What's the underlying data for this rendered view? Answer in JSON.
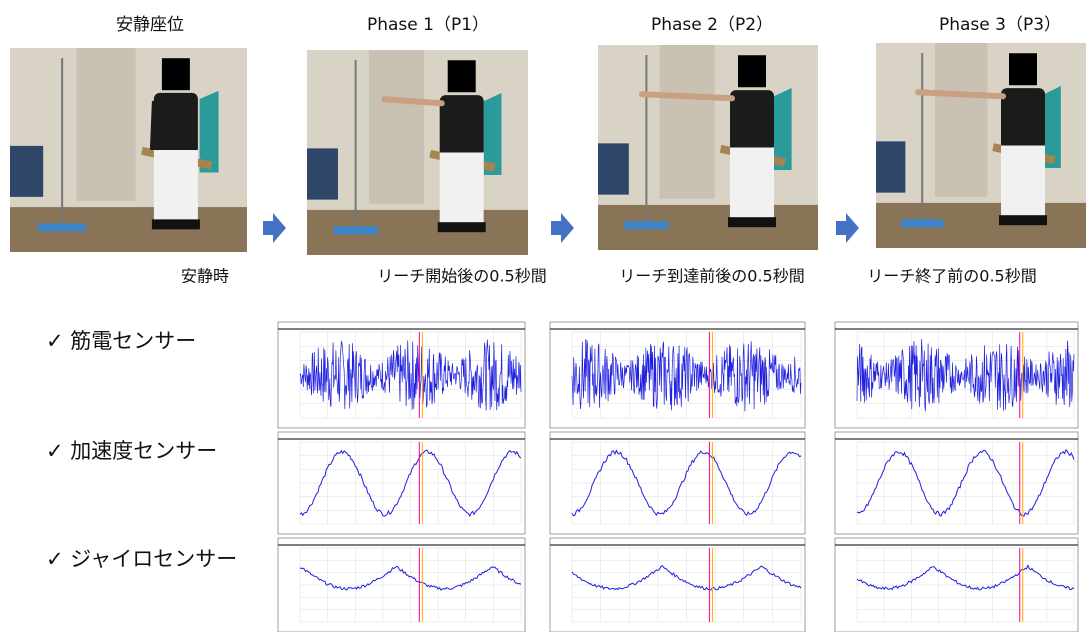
{
  "phases": [
    {
      "title": "安静座位",
      "caption": "安静時"
    },
    {
      "title": "Phase 1（P1）",
      "caption": "リーチ開始後の0.5秒間"
    },
    {
      "title": "Phase 2（P2）",
      "caption": "リーチ到達前後の0.5秒間"
    },
    {
      "title": "Phase 3（P3）",
      "caption": "リーチ終了前の0.5秒間"
    }
  ],
  "sensors": [
    "✓ 筋電センサー",
    "✓ 加速度センサー",
    "✓ ジャイロセンサー"
  ]
}
